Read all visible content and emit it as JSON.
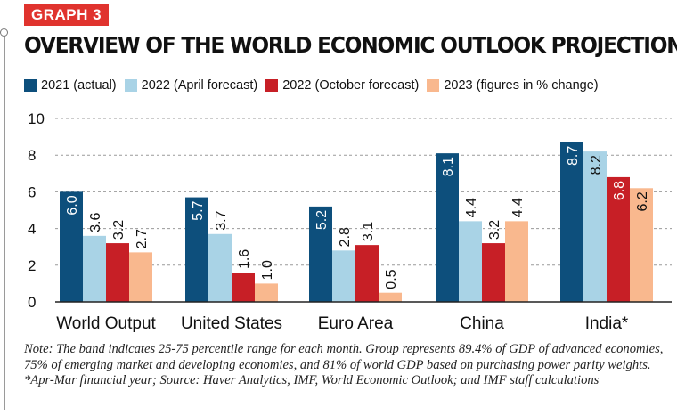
{
  "graph_label": "GRAPH 3",
  "title": "OVERVIEW OF THE WORLD ECONOMIC OUTLOOK PROJECTIONS",
  "legend_note": "(figures in % change)",
  "colors": {
    "s2021": "#0d4f7c",
    "s2022a": "#a9d3e6",
    "s2022o": "#c71f26",
    "s2023": "#f9b88e",
    "tag": "#e0332e"
  },
  "chart_data": {
    "type": "bar",
    "title": "OVERVIEW OF THE WORLD ECONOMIC OUTLOOK PROJECTIONS",
    "categories": [
      "World Output",
      "United States",
      "Euro Area",
      "China",
      "India*"
    ],
    "series": [
      {
        "name": "2021 (actual)",
        "values": [
          6.0,
          5.7,
          5.2,
          8.1,
          8.7
        ]
      },
      {
        "name": "2022 (April forecast)",
        "values": [
          3.6,
          3.7,
          2.8,
          4.4,
          8.2
        ]
      },
      {
        "name": "2022 (October forecast)",
        "values": [
          3.2,
          1.6,
          3.1,
          3.2,
          6.8
        ]
      },
      {
        "name": "2023",
        "values": [
          2.7,
          1.0,
          0.5,
          4.4,
          6.2
        ]
      }
    ],
    "value_labels": [
      [
        "6.0",
        "5.7",
        "5.2",
        "8.1",
        "8.7"
      ],
      [
        "3.6",
        "3.7",
        "2.8",
        "4.4",
        "8.2"
      ],
      [
        "3.2",
        "1.6",
        "3.1",
        "3.2",
        "6.8"
      ],
      [
        "2.7",
        "1.0",
        "0.5",
        "4.4",
        "6.2"
      ]
    ],
    "yticks": [
      "0",
      "2",
      "4",
      "6",
      "8",
      "10"
    ],
    "ylim": [
      0,
      10
    ],
    "grid": "dashed horizontal",
    "xlabel": "",
    "ylabel": ""
  },
  "note": "Note: The band indicates 25-75 percentile range for each month. Group represents 89.4% of GDP of advanced economies, 75% of emerging market and developing economies, and 81% of world GDP based on purchasing power parity weights. *Apr-Mar financial year; Source: Haver Analytics, IMF, World Economic Outlook;  and IMF staff calculations"
}
